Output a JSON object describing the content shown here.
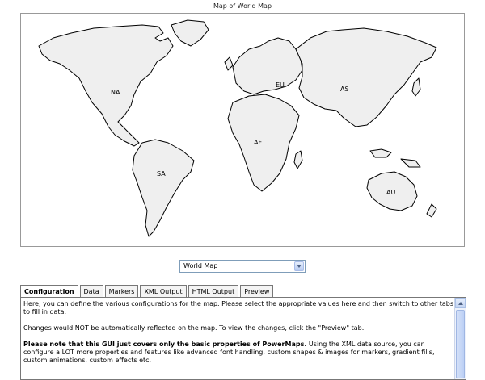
{
  "map": {
    "title": "Map of World Map",
    "regions": {
      "na": "NA",
      "eu": "EU",
      "as": "AS",
      "af": "AF",
      "sa": "SA",
      "au": "AU"
    },
    "land_color": "#efefef",
    "border_color": "#000000"
  },
  "selector": {
    "value": "World Map",
    "icon": "chevron-down-icon"
  },
  "tabs": [
    {
      "label": "Configuration",
      "active": true
    },
    {
      "label": "Data"
    },
    {
      "label": "Markers"
    },
    {
      "label": "XML Output"
    },
    {
      "label": "HTML Output"
    },
    {
      "label": "Preview"
    }
  ],
  "panel": {
    "para1": "Here, you can define the various configurations for the map. Please select the appropriate values here and then switch to other tabs to fill in data.",
    "para2": "Changes would NOT be automatically reflected on the map. To view the changes, click the \"Preview\" tab.",
    "para3_bold": "Please note that this GUI just covers only the basic properties of PowerMaps.",
    "para3_rest": " Using the XML data source, you can configure a LOT more properties and features like advanced font handling, custom shapes & images for markers, gradient fills, custom animations, custom effects etc."
  }
}
